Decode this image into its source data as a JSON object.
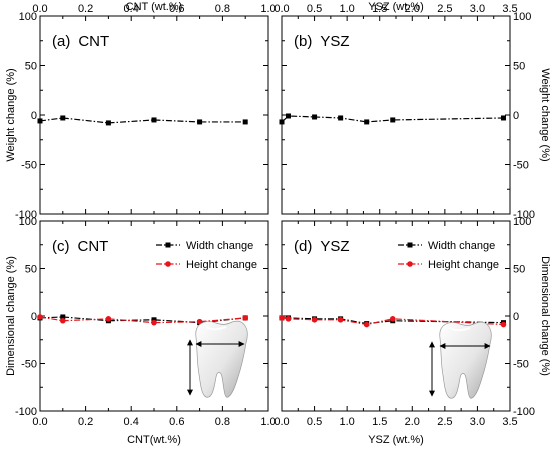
{
  "chart_data": [
    {
      "type": "line",
      "panel_label": "(a)",
      "panel_name": "CNT",
      "xlabel_top": "CNT (wt.%)",
      "ylabel": "Weight change (%)",
      "xlim": [
        0,
        1.0
      ],
      "ylim": [
        -100,
        100
      ],
      "xticks": [
        0.0,
        0.2,
        0.4,
        0.6,
        0.8,
        1.0
      ],
      "yticks": [
        -100,
        -50,
        0,
        50,
        100
      ],
      "tick_labels_x": [
        "0.0",
        "0.2",
        "0.4",
        "0.6",
        "0.8",
        "1.0"
      ],
      "tick_labels_y": [
        "-100",
        "-50",
        "0",
        "50",
        "100"
      ],
      "series": [
        {
          "color": "#000000",
          "marker": "square",
          "x": [
            0.0,
            0.1,
            0.3,
            0.5,
            0.7,
            0.9
          ],
          "y": [
            -6,
            -3,
            -8,
            -5,
            -7,
            -7
          ]
        }
      ]
    },
    {
      "type": "line",
      "panel_label": "(b)",
      "panel_name": "YSZ",
      "xlabel_top": "YSZ (wt.%)",
      "ylabel": "Weight change (%)",
      "xlim": [
        0,
        3.5
      ],
      "ylim": [
        -100,
        100
      ],
      "xticks": [
        0.0,
        0.5,
        1.0,
        1.5,
        2.0,
        2.5,
        3.0,
        3.5
      ],
      "yticks": [
        -100,
        -50,
        0,
        50,
        100
      ],
      "tick_labels_x": [
        "0.0",
        "0.5",
        "1.0",
        "1.5",
        "2.0",
        "2.5",
        "3.0",
        "3.5"
      ],
      "tick_labels_y": [
        "-100",
        "-50",
        "0",
        "50",
        "100"
      ],
      "series": [
        {
          "color": "#000000",
          "marker": "square",
          "x": [
            0.0,
            0.1,
            0.5,
            0.9,
            1.3,
            1.7,
            3.4
          ],
          "y": [
            -7,
            -1,
            -2,
            -3,
            -7,
            -5,
            -3
          ]
        }
      ]
    },
    {
      "type": "line",
      "panel_label": "(c)",
      "panel_name": "CNT",
      "xlabel": "CNT(wt.%)",
      "ylabel": "Dimensional change (%)",
      "xlim": [
        0,
        1.0
      ],
      "ylim": [
        -100,
        100
      ],
      "xticks": [
        0.0,
        0.2,
        0.4,
        0.6,
        0.8,
        1.0
      ],
      "yticks": [
        -100,
        -50,
        0,
        50,
        100
      ],
      "tick_labels_x": [
        "0.0",
        "0.2",
        "0.4",
        "0.6",
        "0.8",
        "1.0"
      ],
      "tick_labels_y": [
        "-100",
        "-50",
        "0",
        "50",
        "100"
      ],
      "legend_position": "top-right",
      "series": [
        {
          "name": "Width change",
          "color": "#000000",
          "marker": "square",
          "x": [
            0.0,
            0.1,
            0.3,
            0.5,
            0.7,
            0.9
          ],
          "y": [
            -2,
            -1,
            -5,
            -4,
            -7,
            -2
          ]
        },
        {
          "name": "Height change",
          "color": "#e8141b",
          "marker": "circle",
          "x": [
            0.0,
            0.1,
            0.3,
            0.5,
            0.7,
            0.9
          ],
          "y": [
            -1,
            -5,
            -3,
            -7,
            -6,
            -2
          ]
        }
      ]
    },
    {
      "type": "line",
      "panel_label": "(d)",
      "panel_name": "YSZ",
      "xlabel": "YSZ (wt.%)",
      "ylabel": "Dimensional change (%)",
      "xlim": [
        0,
        3.5
      ],
      "ylim": [
        -100,
        100
      ],
      "xticks": [
        0.0,
        0.5,
        1.0,
        1.5,
        2.0,
        2.5,
        3.0,
        3.5
      ],
      "yticks": [
        -100,
        -50,
        0,
        50,
        100
      ],
      "tick_labels_x": [
        "0.0",
        "0.5",
        "1.0",
        "1.5",
        "2.0",
        "2.5",
        "3.0",
        "3.5"
      ],
      "tick_labels_y": [
        "-100",
        "-50",
        "0",
        "50",
        "100"
      ],
      "legend_position": "top-right",
      "series": [
        {
          "name": "Width change",
          "color": "#000000",
          "marker": "square",
          "x": [
            0.0,
            0.1,
            0.5,
            0.9,
            1.3,
            1.7,
            3.4
          ],
          "y": [
            -2,
            -2,
            -3,
            -3,
            -8,
            -5,
            -7
          ]
        },
        {
          "name": "Height change",
          "color": "#e8141b",
          "marker": "circle",
          "x": [
            0.0,
            0.1,
            0.5,
            0.9,
            1.3,
            1.7,
            3.4
          ],
          "y": [
            -2,
            -3,
            -4,
            -4,
            -9,
            -3,
            -9
          ]
        }
      ]
    }
  ]
}
